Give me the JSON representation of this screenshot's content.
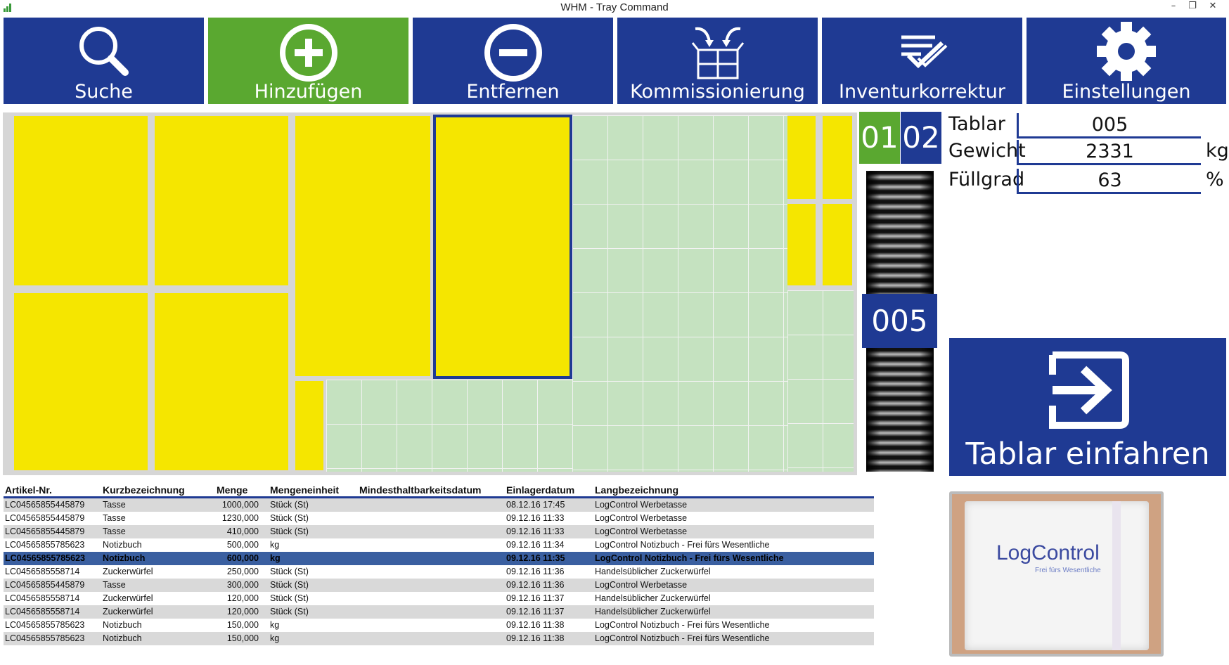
{
  "window": {
    "title": "WHM - Tray Command",
    "minimize": "–",
    "restore": "❐",
    "close": "✕"
  },
  "toolbar": [
    {
      "label": "Suche",
      "icon": "search-icon"
    },
    {
      "label": "Hinzufügen",
      "icon": "add-circle-icon",
      "active": true
    },
    {
      "label": "Entfernen",
      "icon": "remove-circle-icon"
    },
    {
      "label": "Kommissionierung",
      "icon": "picking-icon"
    },
    {
      "label": "Inventurkorrektur",
      "icon": "checklist-icon"
    },
    {
      "label": "Einstellungen",
      "icon": "gear-icon"
    }
  ],
  "colors": {
    "primary": "#1f3a93",
    "active": "#5aa830",
    "slot": "#f5e600",
    "free": "#c5e2c0"
  },
  "tray_tabs": [
    "01",
    "02"
  ],
  "tower_badge": "005",
  "info": {
    "tablar_label": "Tablar",
    "tablar_value": "005",
    "gewicht_label": "Gewicht",
    "gewicht_value": "2331",
    "gewicht_unit": "kg",
    "fuellgrad_label": "Füllgrad",
    "fuellgrad_value": "63",
    "fuellgrad_unit": "%"
  },
  "store_button": {
    "label": "Tablar einfahren",
    "icon": "arrow-right-box-icon"
  },
  "table": {
    "headers": [
      "Artikel-Nr.",
      "Kurzbezeichnung",
      "Menge",
      "Mengeneinheit",
      "Mindesthaltbarkeitsdatum",
      "Einlagerdatum",
      "Langbezeichnung"
    ],
    "rows": [
      [
        "LC04565855445879",
        "Tasse",
        "1000,000",
        "Stück (St)",
        "",
        "08.12.16 17:45",
        "LogControl Werbetasse"
      ],
      [
        "LC04565855445879",
        "Tasse",
        "1230,000",
        "Stück (St)",
        "",
        "09.12.16 11:33",
        "LogControl Werbetasse"
      ],
      [
        "LC04565855445879",
        "Tasse",
        "410,000",
        "Stück (St)",
        "",
        "09.12.16 11:33",
        "LogControl Werbetasse"
      ],
      [
        "LC04565855785623",
        "Notizbuch",
        "500,000",
        "kg",
        "",
        "09.12.16 11:34",
        "LogControl Notizbuch - Frei fürs Wesentliche"
      ],
      [
        "LC04565855785623",
        "Notizbuch",
        "600,000",
        "kg",
        "",
        "09.12.16 11:35",
        "LogControl Notizbuch - Frei fürs Wesentliche"
      ],
      [
        "LC0456585558714",
        "Zuckerwürfel",
        "250,000",
        "Stück (St)",
        "",
        "09.12.16 11:36",
        "Handelsüblicher Zuckerwürfel"
      ],
      [
        "LC04565855445879",
        "Tasse",
        "300,000",
        "Stück (St)",
        "",
        "09.12.16 11:36",
        "LogControl Werbetasse"
      ],
      [
        "LC0456585558714",
        "Zuckerwürfel",
        "120,000",
        "Stück (St)",
        "",
        "09.12.16 11:37",
        "Handelsüblicher Zuckerwürfel"
      ],
      [
        "LC0456585558714",
        "Zuckerwürfel",
        "120,000",
        "Stück (St)",
        "",
        "09.12.16 11:37",
        "Handelsüblicher Zuckerwürfel"
      ],
      [
        "LC04565855785623",
        "Notizbuch",
        "150,000",
        "kg",
        "",
        "09.12.16 11:38",
        "LogControl Notizbuch - Frei fürs Wesentliche"
      ],
      [
        "LC04565855785623",
        "Notizbuch",
        "150,000",
        "kg",
        "",
        "09.12.16 11:38",
        "LogControl Notizbuch - Frei fürs Wesentliche"
      ]
    ],
    "selected_row": 4
  },
  "photo": {
    "brand": "LogControl",
    "slogan": "Frei fürs Wesentliche"
  }
}
